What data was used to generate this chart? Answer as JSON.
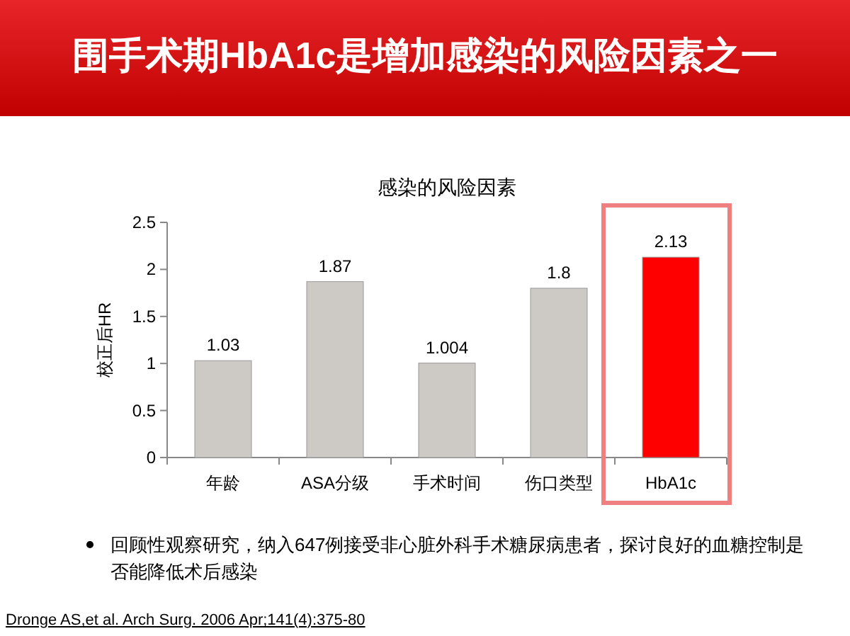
{
  "chart_data": {
    "type": "bar",
    "title": "围手术期HbA1c是增加感染的风险因素之一",
    "subtitle": "感染的风险因素",
    "ylabel": "校正后HR",
    "categories": [
      "年龄",
      "ASA分级",
      "手术时间",
      "伤口类型",
      "HbA1c"
    ],
    "values": [
      1.03,
      1.87,
      1.004,
      1.8,
      2.13
    ],
    "colors": [
      "#cdc9c5",
      "#cdc9c5",
      "#cdc9c5",
      "#cdc9c5",
      "#ff0000"
    ],
    "ylim": [
      0,
      2.5
    ],
    "yticks": [
      0,
      0.5,
      1,
      1.5,
      2,
      2.5
    ],
    "data_labels": true,
    "annotations": [
      "回顾性观察研究，纳入647例接受非心脏外科手术糖尿病患者，探讨良好的血糖控制是否能降低术后感染",
      "Dronge AS,et al. Arch Surg. 2006 Apr;141(4):375-80"
    ]
  }
}
